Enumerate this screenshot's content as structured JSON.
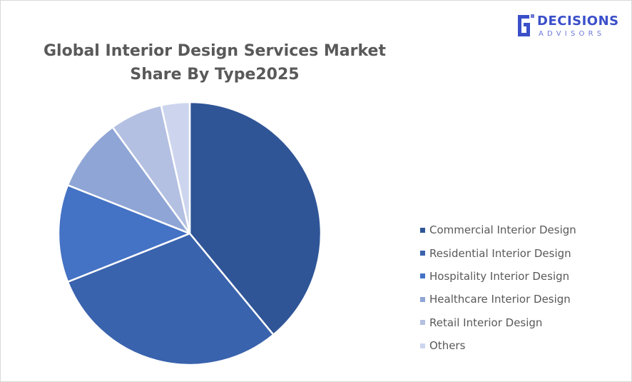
{
  "chart_data": {
    "type": "pie",
    "title_lines": [
      "Global Interior Design Services Market",
      "Share By Type2025"
    ],
    "categories": [
      "Commercial Interior Design",
      "Residential Interior Design",
      "Hospitality Interior Design",
      "Healthcare Interior Design",
      "Retail Interior Design",
      "Others"
    ],
    "values": [
      39,
      30,
      12,
      9,
      6.5,
      3.5
    ],
    "colors": [
      "#2f5597",
      "#3a63ad",
      "#4472c4",
      "#8fa5d6",
      "#b4c0e2",
      "#cdd5ee"
    ],
    "legend_position": "right"
  },
  "logo": {
    "word1": "DECISIONS",
    "word2": "ADVISORS",
    "color": "#3a4fc9"
  }
}
